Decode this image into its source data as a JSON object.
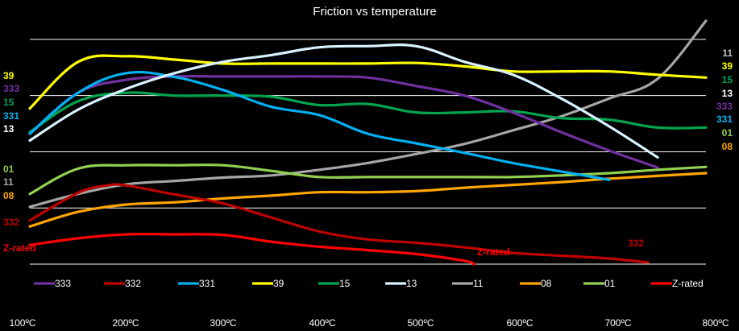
{
  "chart_data": {
    "type": "line",
    "title": "Friction vs temperature",
    "xlabel": "",
    "ylabel": "",
    "x_unit": "ºC",
    "x_ticks": [
      "100ºC",
      "200ºC",
      "300ºC",
      "400ºC",
      "500ºC",
      "600ºC",
      "700ºC",
      "800ºC"
    ],
    "xlim": [
      100,
      800
    ],
    "ylim": [
      0.3,
      0.75
    ],
    "gridlines": [
      0.7,
      0.6,
      0.5,
      0.4,
      0.3
    ],
    "y_axis_labels": "none",
    "legend_position": "bottom",
    "series": [
      {
        "name": "333",
        "color": "#7030a0",
        "left_label": "333",
        "right_label": "333",
        "points": [
          [
            100,
            0.532
          ],
          [
            150,
            0.605
          ],
          [
            200,
            0.628
          ],
          [
            250,
            0.634
          ],
          [
            300,
            0.634
          ],
          [
            350,
            0.634
          ],
          [
            400,
            0.634
          ],
          [
            450,
            0.632
          ],
          [
            500,
            0.617
          ],
          [
            550,
            0.6
          ],
          [
            600,
            0.57
          ],
          [
            650,
            0.535
          ],
          [
            700,
            0.502
          ],
          [
            750,
            0.472
          ]
        ]
      },
      {
        "name": "332",
        "color": "#c00000",
        "left_label": "332",
        "right_label": "332",
        "points": [
          [
            100,
            0.378
          ],
          [
            150,
            0.427
          ],
          [
            180,
            0.44
          ],
          [
            200,
            0.44
          ],
          [
            250,
            0.424
          ],
          [
            300,
            0.408
          ],
          [
            350,
            0.383
          ],
          [
            400,
            0.358
          ],
          [
            450,
            0.344
          ],
          [
            500,
            0.338
          ],
          [
            550,
            0.33
          ],
          [
            600,
            0.32
          ],
          [
            650,
            0.315
          ],
          [
            700,
            0.31
          ],
          [
            740,
            0.303
          ]
        ]
      },
      {
        "name": "331",
        "color": "#00b0f0",
        "left_label": "331",
        "right_label": "331",
        "points": [
          [
            100,
            0.532
          ],
          [
            150,
            0.605
          ],
          [
            200,
            0.64
          ],
          [
            250,
            0.633
          ],
          [
            300,
            0.61
          ],
          [
            350,
            0.58
          ],
          [
            400,
            0.565
          ],
          [
            450,
            0.532
          ],
          [
            500,
            0.515
          ],
          [
            550,
            0.498
          ],
          [
            600,
            0.48
          ],
          [
            650,
            0.465
          ],
          [
            700,
            0.45
          ]
        ]
      },
      {
        "name": "39",
        "color": "#ffff00",
        "left_label": "39",
        "right_label": "39",
        "points": [
          [
            100,
            0.577
          ],
          [
            150,
            0.66
          ],
          [
            200,
            0.67
          ],
          [
            250,
            0.664
          ],
          [
            300,
            0.657
          ],
          [
            350,
            0.657
          ],
          [
            400,
            0.657
          ],
          [
            450,
            0.657
          ],
          [
            500,
            0.658
          ],
          [
            550,
            0.652
          ],
          [
            600,
            0.643
          ],
          [
            650,
            0.643
          ],
          [
            700,
            0.643
          ],
          [
            750,
            0.637
          ],
          [
            800,
            0.632
          ]
        ]
      },
      {
        "name": "15",
        "color": "#00a550",
        "left_label": "15",
        "right_label": "15",
        "points": [
          [
            100,
            0.535
          ],
          [
            150,
            0.59
          ],
          [
            200,
            0.605
          ],
          [
            250,
            0.6
          ],
          [
            300,
            0.6
          ],
          [
            350,
            0.598
          ],
          [
            400,
            0.583
          ],
          [
            450,
            0.585
          ],
          [
            500,
            0.57
          ],
          [
            550,
            0.57
          ],
          [
            600,
            0.572
          ],
          [
            650,
            0.56
          ],
          [
            700,
            0.557
          ],
          [
            750,
            0.543
          ],
          [
            800,
            0.543
          ]
        ]
      },
      {
        "name": "13",
        "color": "#d9f2ff",
        "left_label": "13",
        "right_label": "13",
        "points": [
          [
            100,
            0.52
          ],
          [
            150,
            0.575
          ],
          [
            200,
            0.612
          ],
          [
            250,
            0.64
          ],
          [
            300,
            0.66
          ],
          [
            350,
            0.672
          ],
          [
            400,
            0.686
          ],
          [
            450,
            0.688
          ],
          [
            500,
            0.688
          ],
          [
            550,
            0.66
          ],
          [
            600,
            0.637
          ],
          [
            650,
            0.595
          ],
          [
            700,
            0.545
          ],
          [
            750,
            0.49
          ]
        ]
      },
      {
        "name": "11",
        "color": "#a6a6a6",
        "left_label": "11",
        "right_label": "11",
        "points": [
          [
            100,
            0.402
          ],
          [
            150,
            0.425
          ],
          [
            200,
            0.442
          ],
          [
            250,
            0.448
          ],
          [
            300,
            0.454
          ],
          [
            350,
            0.458
          ],
          [
            400,
            0.468
          ],
          [
            450,
            0.48
          ],
          [
            500,
            0.496
          ],
          [
            550,
            0.514
          ],
          [
            600,
            0.538
          ],
          [
            650,
            0.563
          ],
          [
            700,
            0.595
          ],
          [
            750,
            0.63
          ],
          [
            800,
            0.733
          ]
        ]
      },
      {
        "name": "08",
        "color": "#ffa500",
        "left_label": "08",
        "right_label": "08",
        "points": [
          [
            100,
            0.367
          ],
          [
            150,
            0.393
          ],
          [
            200,
            0.406
          ],
          [
            250,
            0.41
          ],
          [
            300,
            0.417
          ],
          [
            350,
            0.422
          ],
          [
            400,
            0.428
          ],
          [
            450,
            0.428
          ],
          [
            500,
            0.43
          ],
          [
            550,
            0.436
          ],
          [
            600,
            0.441
          ],
          [
            650,
            0.446
          ],
          [
            700,
            0.452
          ],
          [
            750,
            0.457
          ],
          [
            800,
            0.462
          ]
        ]
      },
      {
        "name": "01",
        "color": "#92d050",
        "left_label": "01",
        "right_label": "01",
        "points": [
          [
            100,
            0.425
          ],
          [
            150,
            0.47
          ],
          [
            200,
            0.476
          ],
          [
            250,
            0.476
          ],
          [
            300,
            0.476
          ],
          [
            350,
            0.466
          ],
          [
            400,
            0.455
          ],
          [
            450,
            0.455
          ],
          [
            500,
            0.455
          ],
          [
            550,
            0.455
          ],
          [
            600,
            0.455
          ],
          [
            650,
            0.458
          ],
          [
            700,
            0.462
          ],
          [
            750,
            0.468
          ],
          [
            800,
            0.473
          ]
        ]
      },
      {
        "name": "Z-rated",
        "color": "#ff0000",
        "left_label": "Z-rated",
        "right_label": "Z-rated",
        "points": [
          [
            100,
            0.334
          ],
          [
            150,
            0.346
          ],
          [
            200,
            0.353
          ],
          [
            250,
            0.353
          ],
          [
            300,
            0.352
          ],
          [
            350,
            0.34
          ],
          [
            400,
            0.331
          ],
          [
            450,
            0.325
          ],
          [
            500,
            0.318
          ],
          [
            550,
            0.306
          ],
          [
            560,
            0.3
          ]
        ]
      }
    ],
    "end_labels": {
      "left_order": [
        "39",
        "333",
        "15",
        "331",
        "13",
        "01",
        "11",
        "08",
        "332",
        "Z-rated"
      ],
      "right_order": [
        "11",
        "39",
        "15",
        "13",
        "333",
        "331",
        "01",
        "08"
      ]
    }
  }
}
